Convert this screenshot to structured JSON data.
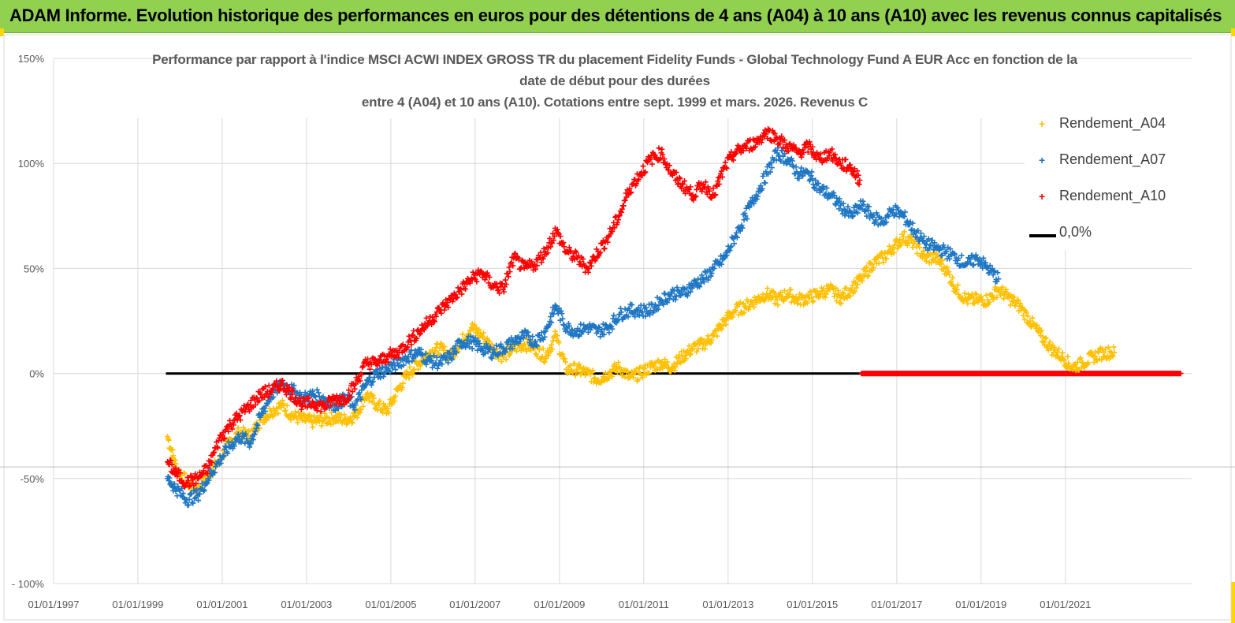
{
  "banner": {
    "title": "ADAM Informe. Evolution historique des performances en euros pour des détentions de 4 ans (A04) à 10 ans (A10) avec les revenus connus capitalisés"
  },
  "colors": {
    "banner_bg": "#92d050",
    "A04": "#ffc000",
    "A07": "#1f77c4",
    "A10": "#ff0000",
    "zero_line": "#000000"
  },
  "chart_data": {
    "type": "scatter",
    "title_lines": [
      "Performance par rapport à l'indice MSCI ACWI INDEX GROSS TR  du placement Fidelity Funds - Global Technology Fund A EUR Acc en fonction de la",
      "date de début pour des durées",
      "entre 4 (A04) et 10 ans (A10).  Cotations entre sept. 1999 et mars. 2026.  Revenus C"
    ],
    "xlabel": "",
    "ylabel": "",
    "x_range": [
      "1997-01-01",
      "2023-12-31"
    ],
    "x_ticks": [
      "01/01/1997",
      "01/01/1999",
      "01/01/2001",
      "01/01/2003",
      "01/01/2005",
      "01/01/2007",
      "01/01/2009",
      "01/01/2011",
      "01/01/2013",
      "01/01/2015",
      "01/01/2017",
      "01/01/2019",
      "01/01/2021"
    ],
    "y_range": [
      -100,
      150
    ],
    "y_ticks": [
      "150%",
      "100%",
      "50%",
      "0%",
      "-50%",
      "- 100%"
    ],
    "y_tick_values": [
      150,
      100,
      50,
      0,
      -50,
      -100
    ],
    "grid": true,
    "legend_position": "top-right",
    "legend": [
      "Rendement_A04",
      "Rendement_A07",
      "Rendement_A10",
      "0,0%"
    ],
    "series": [
      {
        "name": "Rendement_A04",
        "marker": "+",
        "points": [
          [
            "1999-09-15",
            -30
          ],
          [
            "1999-12-01",
            -45
          ],
          [
            "2000-03-01",
            -52
          ],
          [
            "2000-06-01",
            -55
          ],
          [
            "2000-09-01",
            -48
          ],
          [
            "2000-12-01",
            -42
          ],
          [
            "2001-03-01",
            -33
          ],
          [
            "2001-06-01",
            -28
          ],
          [
            "2001-09-01",
            -30
          ],
          [
            "2001-12-01",
            -22
          ],
          [
            "2002-03-01",
            -18
          ],
          [
            "2002-06-01",
            -15
          ],
          [
            "2002-09-01",
            -20
          ],
          [
            "2002-12-01",
            -22
          ],
          [
            "2003-03-01",
            -23
          ],
          [
            "2003-06-01",
            -22
          ],
          [
            "2003-09-01",
            -21
          ],
          [
            "2003-12-01",
            -22
          ],
          [
            "2004-03-01",
            -20
          ],
          [
            "2004-06-01",
            -10
          ],
          [
            "2004-09-01",
            -15
          ],
          [
            "2004-12-01",
            -18
          ],
          [
            "2005-03-01",
            -8
          ],
          [
            "2005-06-01",
            0
          ],
          [
            "2005-09-01",
            5
          ],
          [
            "2005-12-01",
            10
          ],
          [
            "2006-03-01",
            12
          ],
          [
            "2006-06-01",
            8
          ],
          [
            "2006-09-01",
            15
          ],
          [
            "2006-12-01",
            22
          ],
          [
            "2007-03-01",
            18
          ],
          [
            "2007-06-01",
            12
          ],
          [
            "2007-09-01",
            8
          ],
          [
            "2007-12-01",
            12
          ],
          [
            "2008-03-01",
            14
          ],
          [
            "2008-06-01",
            12
          ],
          [
            "2008-09-01",
            8
          ],
          [
            "2008-12-01",
            18
          ],
          [
            "2009-03-01",
            2
          ],
          [
            "2009-06-01",
            2
          ],
          [
            "2009-09-01",
            0
          ],
          [
            "2009-12-01",
            -3
          ],
          [
            "2010-03-01",
            0
          ],
          [
            "2010-06-01",
            3
          ],
          [
            "2010-09-01",
            -2
          ],
          [
            "2010-12-01",
            0
          ],
          [
            "2011-03-01",
            3
          ],
          [
            "2011-06-01",
            5
          ],
          [
            "2011-09-01",
            3
          ],
          [
            "2011-12-01",
            8
          ],
          [
            "2012-03-01",
            12
          ],
          [
            "2012-06-01",
            14
          ],
          [
            "2012-09-01",
            18
          ],
          [
            "2012-12-01",
            25
          ],
          [
            "2013-03-01",
            30
          ],
          [
            "2013-06-01",
            32
          ],
          [
            "2013-09-01",
            35
          ],
          [
            "2013-12-01",
            38
          ],
          [
            "2014-03-01",
            35
          ],
          [
            "2014-06-01",
            38
          ],
          [
            "2014-09-01",
            35
          ],
          [
            "2014-12-01",
            36
          ],
          [
            "2015-03-01",
            38
          ],
          [
            "2015-06-01",
            40
          ],
          [
            "2015-09-01",
            36
          ],
          [
            "2015-12-01",
            40
          ],
          [
            "2016-03-01",
            45
          ],
          [
            "2016-06-01",
            52
          ],
          [
            "2016-09-01",
            55
          ],
          [
            "2016-12-01",
            60
          ],
          [
            "2017-03-01",
            65
          ],
          [
            "2017-06-01",
            62
          ],
          [
            "2017-09-01",
            55
          ],
          [
            "2017-12-01",
            55
          ],
          [
            "2018-03-01",
            50
          ],
          [
            "2018-06-01",
            40
          ],
          [
            "2018-09-01",
            35
          ],
          [
            "2018-12-01",
            35
          ],
          [
            "2019-03-01",
            35
          ],
          [
            "2019-06-01",
            40
          ],
          [
            "2019-09-01",
            36
          ],
          [
            "2019-12-01",
            32
          ],
          [
            "2020-03-01",
            25
          ],
          [
            "2020-06-01",
            18
          ],
          [
            "2020-09-01",
            12
          ],
          [
            "2020-12-01",
            8
          ],
          [
            "2021-03-01",
            3
          ],
          [
            "2021-06-01",
            5
          ],
          [
            "2021-09-01",
            8
          ],
          [
            "2021-12-01",
            10
          ],
          [
            "2022-03-01",
            10
          ]
        ]
      },
      {
        "name": "Rendement_A07",
        "marker": "+",
        "points": [
          [
            "1999-09-15",
            -50
          ],
          [
            "1999-12-01",
            -55
          ],
          [
            "2000-03-01",
            -60
          ],
          [
            "2000-06-01",
            -58
          ],
          [
            "2000-09-01",
            -50
          ],
          [
            "2000-12-01",
            -42
          ],
          [
            "2001-03-01",
            -35
          ],
          [
            "2001-06-01",
            -30
          ],
          [
            "2001-09-01",
            -33
          ],
          [
            "2001-12-01",
            -20
          ],
          [
            "2002-03-01",
            -10
          ],
          [
            "2002-06-01",
            -5
          ],
          [
            "2002-09-01",
            -8
          ],
          [
            "2002-12-01",
            -12
          ],
          [
            "2003-03-01",
            -10
          ],
          [
            "2003-06-01",
            -12
          ],
          [
            "2003-09-01",
            -15
          ],
          [
            "2003-12-01",
            -12
          ],
          [
            "2004-03-01",
            -15
          ],
          [
            "2004-06-01",
            -5
          ],
          [
            "2004-09-01",
            0
          ],
          [
            "2004-12-01",
            2
          ],
          [
            "2005-03-01",
            5
          ],
          [
            "2005-06-01",
            8
          ],
          [
            "2005-09-01",
            10
          ],
          [
            "2005-12-01",
            6
          ],
          [
            "2006-03-01",
            5
          ],
          [
            "2006-06-01",
            8
          ],
          [
            "2006-09-01",
            15
          ],
          [
            "2006-12-01",
            15
          ],
          [
            "2007-03-01",
            12
          ],
          [
            "2007-06-01",
            10
          ],
          [
            "2007-09-01",
            12
          ],
          [
            "2007-12-01",
            15
          ],
          [
            "2008-03-01",
            18
          ],
          [
            "2008-06-01",
            15
          ],
          [
            "2008-09-01",
            20
          ],
          [
            "2008-12-01",
            32
          ],
          [
            "2009-03-01",
            22
          ],
          [
            "2009-06-01",
            20
          ],
          [
            "2009-09-01",
            22
          ],
          [
            "2009-12-01",
            20
          ],
          [
            "2010-03-01",
            22
          ],
          [
            "2010-06-01",
            28
          ],
          [
            "2010-09-01",
            30
          ],
          [
            "2010-12-01",
            30
          ],
          [
            "2011-03-01",
            30
          ],
          [
            "2011-06-01",
            35
          ],
          [
            "2011-09-01",
            38
          ],
          [
            "2011-12-01",
            38
          ],
          [
            "2012-03-01",
            42
          ],
          [
            "2012-06-01",
            45
          ],
          [
            "2012-09-01",
            50
          ],
          [
            "2012-12-01",
            55
          ],
          [
            "2013-03-01",
            65
          ],
          [
            "2013-06-01",
            75
          ],
          [
            "2013-09-01",
            85
          ],
          [
            "2013-12-01",
            95
          ],
          [
            "2014-03-01",
            105
          ],
          [
            "2014-06-01",
            102
          ],
          [
            "2014-09-01",
            95
          ],
          [
            "2014-12-01",
            95
          ],
          [
            "2015-03-01",
            88
          ],
          [
            "2015-06-01",
            85
          ],
          [
            "2015-09-01",
            80
          ],
          [
            "2015-12-01",
            75
          ],
          [
            "2016-03-01",
            80
          ],
          [
            "2016-06-01",
            75
          ],
          [
            "2016-09-01",
            72
          ],
          [
            "2016-12-01",
            78
          ],
          [
            "2017-03-01",
            75
          ],
          [
            "2017-06-01",
            68
          ],
          [
            "2017-09-01",
            62
          ],
          [
            "2017-12-01",
            60
          ],
          [
            "2018-03-01",
            58
          ],
          [
            "2018-06-01",
            55
          ],
          [
            "2018-09-01",
            52
          ],
          [
            "2018-12-01",
            55
          ],
          [
            "2019-03-01",
            50
          ],
          [
            "2019-06-01",
            45
          ]
        ]
      },
      {
        "name": "Rendement_A10",
        "marker": "+",
        "points": [
          [
            "1999-09-15",
            -42
          ],
          [
            "1999-12-01",
            -48
          ],
          [
            "2000-03-01",
            -52
          ],
          [
            "2000-06-01",
            -50
          ],
          [
            "2000-09-01",
            -45
          ],
          [
            "2000-12-01",
            -32
          ],
          [
            "2001-03-01",
            -25
          ],
          [
            "2001-06-01",
            -20
          ],
          [
            "2001-09-01",
            -15
          ],
          [
            "2001-12-01",
            -10
          ],
          [
            "2002-03-01",
            -8
          ],
          [
            "2002-06-01",
            -5
          ],
          [
            "2002-09-01",
            -10
          ],
          [
            "2002-12-01",
            -15
          ],
          [
            "2003-03-01",
            -14
          ],
          [
            "2003-06-01",
            -16
          ],
          [
            "2003-09-01",
            -12
          ],
          [
            "2003-12-01",
            -12
          ],
          [
            "2004-03-01",
            -5
          ],
          [
            "2004-06-01",
            5
          ],
          [
            "2004-09-01",
            5
          ],
          [
            "2004-12-01",
            8
          ],
          [
            "2005-03-01",
            10
          ],
          [
            "2005-06-01",
            15
          ],
          [
            "2005-09-01",
            20
          ],
          [
            "2005-12-01",
            25
          ],
          [
            "2006-03-01",
            30
          ],
          [
            "2006-06-01",
            35
          ],
          [
            "2006-09-01",
            40
          ],
          [
            "2006-12-01",
            45
          ],
          [
            "2007-03-01",
            48
          ],
          [
            "2007-06-01",
            42
          ],
          [
            "2007-09-01",
            40
          ],
          [
            "2007-12-01",
            55
          ],
          [
            "2008-03-01",
            50
          ],
          [
            "2008-06-01",
            52
          ],
          [
            "2008-09-01",
            58
          ],
          [
            "2008-12-01",
            68
          ],
          [
            "2009-03-01",
            58
          ],
          [
            "2009-06-01",
            55
          ],
          [
            "2009-09-01",
            50
          ],
          [
            "2009-12-01",
            58
          ],
          [
            "2010-03-01",
            65
          ],
          [
            "2010-06-01",
            75
          ],
          [
            "2010-09-01",
            88
          ],
          [
            "2010-12-01",
            95
          ],
          [
            "2011-03-01",
            102
          ],
          [
            "2011-06-01",
            105
          ],
          [
            "2011-09-01",
            95
          ],
          [
            "2011-12-01",
            90
          ],
          [
            "2012-03-01",
            85
          ],
          [
            "2012-06-01",
            90
          ],
          [
            "2012-09-01",
            85
          ],
          [
            "2012-12-01",
            98
          ],
          [
            "2013-03-01",
            105
          ],
          [
            "2013-06-01",
            108
          ],
          [
            "2013-09-01",
            110
          ],
          [
            "2013-12-01",
            115
          ],
          [
            "2014-03-01",
            112
          ],
          [
            "2014-06-01",
            108
          ],
          [
            "2014-09-01",
            105
          ],
          [
            "2014-12-01",
            108
          ],
          [
            "2015-03-01",
            102
          ],
          [
            "2015-06-01",
            105
          ],
          [
            "2015-09-01",
            100
          ],
          [
            "2015-12-01",
            98
          ],
          [
            "2016-02-15",
            92
          ]
        ]
      }
    ],
    "reference_line": {
      "name": "0,0%",
      "y": 0,
      "x_start": "1999-09-01",
      "x_end": "2016-03-01"
    },
    "zero_points_A10": {
      "y": 0,
      "x_start": "2016-03-01",
      "x_end": "2023-09-30"
    }
  }
}
